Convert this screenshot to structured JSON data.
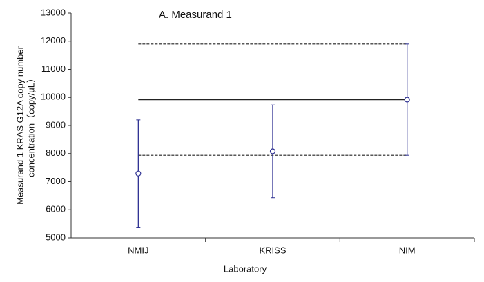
{
  "chart_data": {
    "type": "errorbar",
    "title": "A. Measurand 1",
    "x_label": "Laboratory",
    "y_label": [
      "Measurand 1 KRAS G12A copy number",
      "concentration（copy/μL）"
    ],
    "categories": [
      "NMIJ",
      "KRISS",
      "NIM"
    ],
    "values": [
      7290,
      8080,
      9920
    ],
    "errors": [
      1910,
      1650,
      1980
    ],
    "color": "#2e3192",
    "reference_line": 9920,
    "reference_band": [
      7940,
      11900
    ],
    "ylim": [
      5000,
      13000
    ],
    "yticks": [
      5000,
      6000,
      7000,
      8000,
      9000,
      10000,
      11000,
      12000,
      13000
    ]
  }
}
